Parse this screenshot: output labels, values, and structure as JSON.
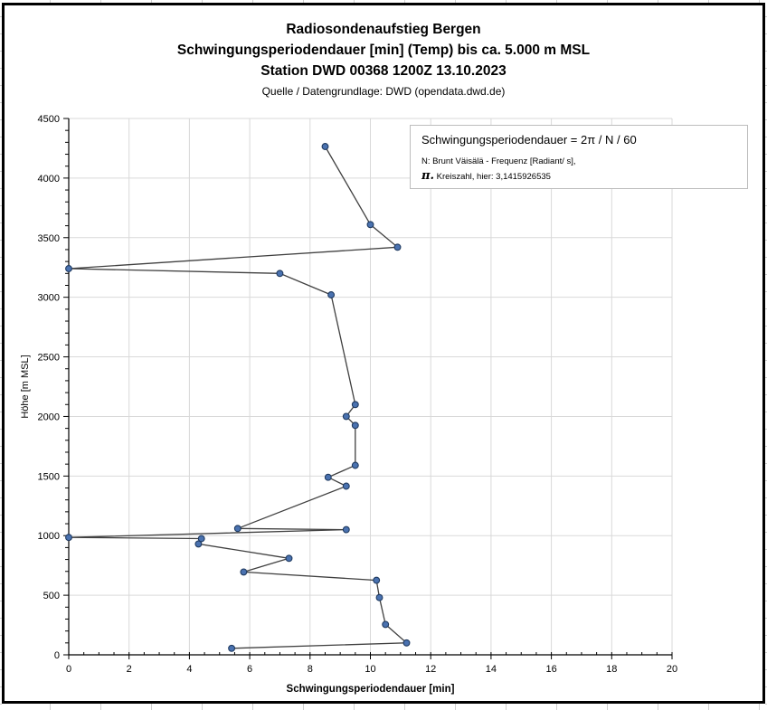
{
  "titles": {
    "line1": "Radiosondenaufstieg Bergen",
    "line2": "Schwingungsperiodendauer [min] (Temp) bis ca. 5.000 m MSL",
    "line3": "Station DWD 00368 1200Z 13.10.2023",
    "source": "Quelle / Datengrundlage: DWD (opendata.dwd.de)"
  },
  "annotation": {
    "formula": "Schwingungsperiodendauer = 2π / N / 60",
    "note1": "N: Brunt Väisälä - Frequenz [Radiant/ s],",
    "note2": "π. Kreiszahl, hier: 3,1415926535"
  },
  "chart_data": {
    "type": "line",
    "title": "Radiosondenaufstieg Bergen – Schwingungsperiodendauer vs. Höhe",
    "xlabel": "Schwingungsperiodendauer [min]",
    "ylabel": "Höhe [m MSL]",
    "xlim": [
      0,
      20
    ],
    "ylim": [
      0,
      4500
    ],
    "x_major_step": 2,
    "x_minor_step": 0.5,
    "y_major_step": 500,
    "y_minor_step": 100,
    "grid": true,
    "legend": "none",
    "marker": "circle",
    "points_xy": [
      [
        5.4,
        55
      ],
      [
        11.2,
        100
      ],
      [
        10.5,
        255
      ],
      [
        10.3,
        480
      ],
      [
        10.2,
        625
      ],
      [
        5.8,
        695
      ],
      [
        7.3,
        810
      ],
      [
        4.3,
        930
      ],
      [
        4.4,
        975
      ],
      [
        0,
        985
      ],
      [
        9.2,
        1050
      ],
      [
        5.6,
        1060
      ],
      [
        9.2,
        1415
      ],
      [
        8.6,
        1490
      ],
      [
        9.5,
        1590
      ],
      [
        9.5,
        1925
      ],
      [
        9.2,
        2000
      ],
      [
        9.5,
        2100
      ],
      [
        8.7,
        3020
      ],
      [
        7.0,
        3200
      ],
      [
        0,
        3240
      ],
      [
        10.9,
        3420
      ],
      [
        10.0,
        3610
      ],
      [
        8.5,
        4265
      ]
    ],
    "colors": {
      "line": "#404040",
      "marker_fill": "#4a72b0",
      "marker_stroke": "#1f3a60",
      "grid": "#d9d9d9",
      "axis": "#000000"
    }
  }
}
